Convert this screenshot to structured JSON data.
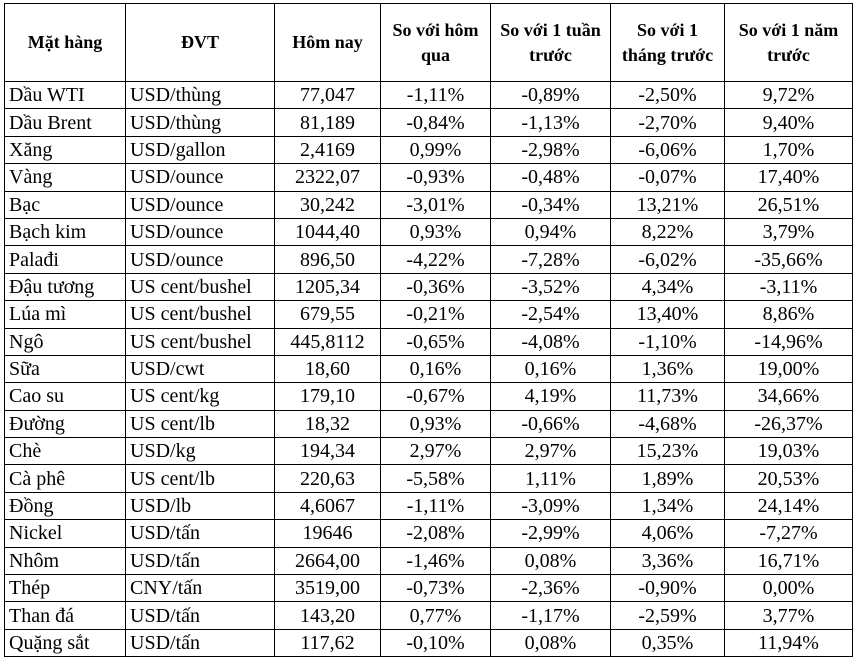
{
  "table": {
    "headers": [
      "Mặt hàng",
      "ĐVT",
      "Hôm nay",
      "So với hôm qua",
      "So với 1 tuần trước",
      "So với 1 tháng trước",
      "So với 1 năm trước"
    ],
    "rows": [
      [
        "Dầu WTI",
        "USD/thùng",
        "77,047",
        "-1,11%",
        "-0,89%",
        "-2,50%",
        "9,72%"
      ],
      [
        "Dầu Brent",
        "USD/thùng",
        "81,189",
        "-0,84%",
        "-1,13%",
        "-2,70%",
        "9,40%"
      ],
      [
        "Xăng",
        "USD/gallon",
        "2,4169",
        "0,99%",
        "-2,98%",
        "-6,06%",
        "1,70%"
      ],
      [
        "Vàng",
        "USD/ounce",
        "2322,07",
        "-0,93%",
        "-0,48%",
        "-0,07%",
        "17,40%"
      ],
      [
        "Bạc",
        "USD/ounce",
        "30,242",
        "-3,01%",
        "-0,34%",
        "13,21%",
        "26,51%"
      ],
      [
        "Bạch kim",
        "USD/ounce",
        "1044,40",
        "0,93%",
        "0,94%",
        "8,22%",
        "3,79%"
      ],
      [
        "Palađi",
        "USD/ounce",
        "896,50",
        "-4,22%",
        "-7,28%",
        "-6,02%",
        "-35,66%"
      ],
      [
        "Đậu tương",
        "US cent/bushel",
        "1205,34",
        "-0,36%",
        "-3,52%",
        "4,34%",
        "-3,11%"
      ],
      [
        "Lúa mì",
        "US cent/bushel",
        "679,55",
        "-0,21%",
        "-2,54%",
        "13,40%",
        "8,86%"
      ],
      [
        "Ngô",
        "US cent/bushel",
        "445,8112",
        "-0,65%",
        "-4,08%",
        "-1,10%",
        "-14,96%"
      ],
      [
        "Sữa",
        "USD/cwt",
        "18,60",
        "0,16%",
        "0,16%",
        "1,36%",
        "19,00%"
      ],
      [
        "Cao su",
        "US cent/kg",
        "179,10",
        "-0,67%",
        "4,19%",
        "11,73%",
        "34,66%"
      ],
      [
        "Đường",
        "US cent/lb",
        "18,32",
        "0,93%",
        "-0,66%",
        "-4,68%",
        "-26,37%"
      ],
      [
        "Chè",
        "USD/kg",
        "194,34",
        "2,97%",
        "2,97%",
        "15,23%",
        "19,03%"
      ],
      [
        "Cà phê",
        "US cent/lb",
        "220,63",
        "-5,58%",
        "1,11%",
        "1,89%",
        "20,53%"
      ],
      [
        "Đồng",
        "USD/lb",
        "4,6067",
        "-1,11%",
        "-3,09%",
        "1,34%",
        "24,14%"
      ],
      [
        "Nickel",
        "USD/tấn",
        "19646",
        "-2,08%",
        "-2,99%",
        "4,06%",
        "-7,27%"
      ],
      [
        "Nhôm",
        "USD/tấn",
        "2664,00",
        "-1,46%",
        "0,08%",
        "3,36%",
        "16,71%"
      ],
      [
        "Thép",
        "CNY/tấn",
        "3519,00",
        "-0,73%",
        "-2,36%",
        "-0,90%",
        "0,00%"
      ],
      [
        "Than đá",
        "USD/tấn",
        "143,20",
        "0,77%",
        "-1,17%",
        "-2,59%",
        "3,77%"
      ],
      [
        "Quặng sắt",
        "USD/tấn",
        "117,62",
        "-0,10%",
        "0,08%",
        "0,35%",
        "11,94%"
      ]
    ]
  }
}
